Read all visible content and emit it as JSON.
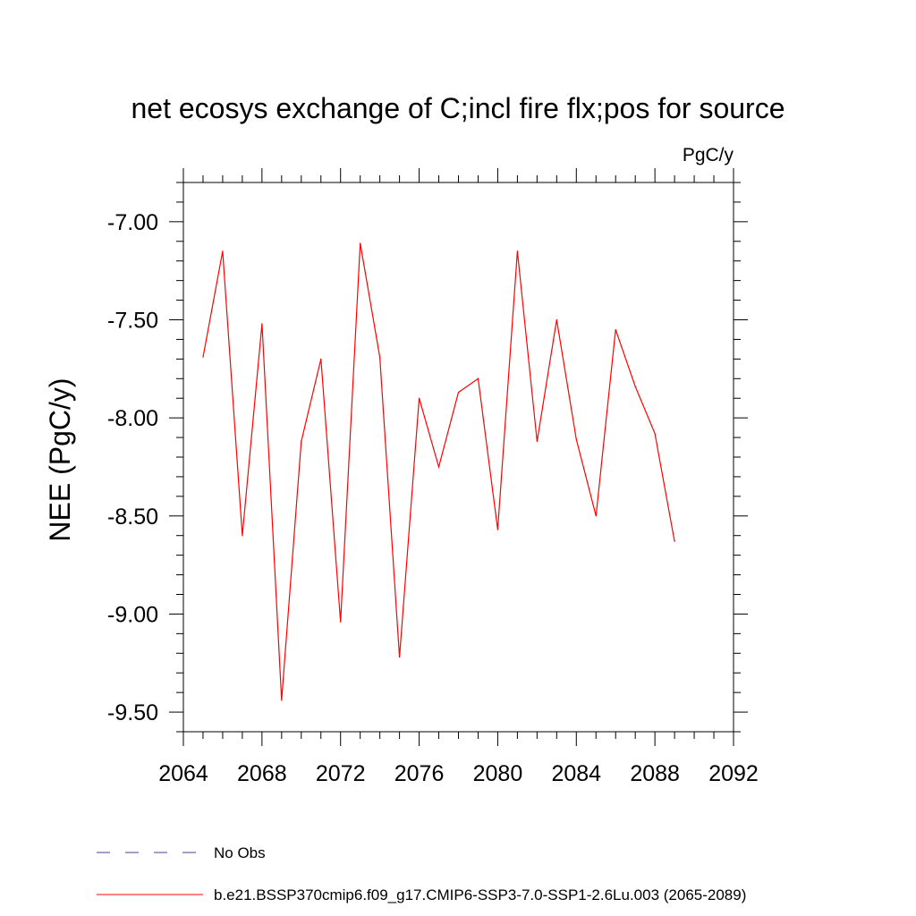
{
  "chart_data": {
    "type": "line",
    "title": "net ecosys exchange of C;incl fire flx;pos for source",
    "units": "PgC/y",
    "ylabel": "NEE  (PgC/y)",
    "xlabel": "",
    "xlim": [
      2064,
      2092
    ],
    "ylim": [
      -9.6,
      -6.8
    ],
    "x_ticks": [
      2064,
      2068,
      2072,
      2076,
      2080,
      2084,
      2088,
      2092
    ],
    "x_tick_labels": [
      "2064",
      "2068",
      "2072",
      "2076",
      "2080",
      "2084",
      "2088",
      "2092"
    ],
    "y_ticks": [
      -7.0,
      -7.5,
      -8.0,
      -8.5,
      -9.0,
      -9.5
    ],
    "y_tick_labels": [
      "-7.00",
      "-7.50",
      "-8.00",
      "-8.50",
      "-9.00",
      "-9.50"
    ],
    "grid": false,
    "legend_position": "bottom-left",
    "series": [
      {
        "name": "b.e21.BSSP370cmip6.f09_g17.CMIP6-SSP3-7.0-SSP1-2.6Lu.003 (2065-2089)",
        "color": "#ff0000",
        "style": "solid",
        "x": [
          2065,
          2066,
          2067,
          2068,
          2069,
          2070,
          2071,
          2072,
          2073,
          2074,
          2075,
          2076,
          2077,
          2078,
          2079,
          2080,
          2081,
          2082,
          2083,
          2084,
          2085,
          2086,
          2087,
          2088,
          2089
        ],
        "values": [
          -7.69,
          -7.15,
          -8.6,
          -7.52,
          -9.44,
          -8.12,
          -7.7,
          -9.04,
          -7.11,
          -7.69,
          -9.22,
          -7.9,
          -8.25,
          -7.87,
          -7.8,
          -8.57,
          -7.15,
          -8.12,
          -7.5,
          -8.11,
          -8.5,
          -7.55,
          -7.84,
          -8.08,
          -8.63
        ]
      }
    ],
    "legend": [
      {
        "label": "No Obs",
        "color": "#4b3c9a",
        "style": "dashed"
      },
      {
        "label": "b.e21.BSSP370cmip6.f09_g17.CMIP6-SSP3-7.0-SSP1-2.6Lu.003 (2065-2089)",
        "color": "#ff0000",
        "style": "solid"
      }
    ]
  }
}
